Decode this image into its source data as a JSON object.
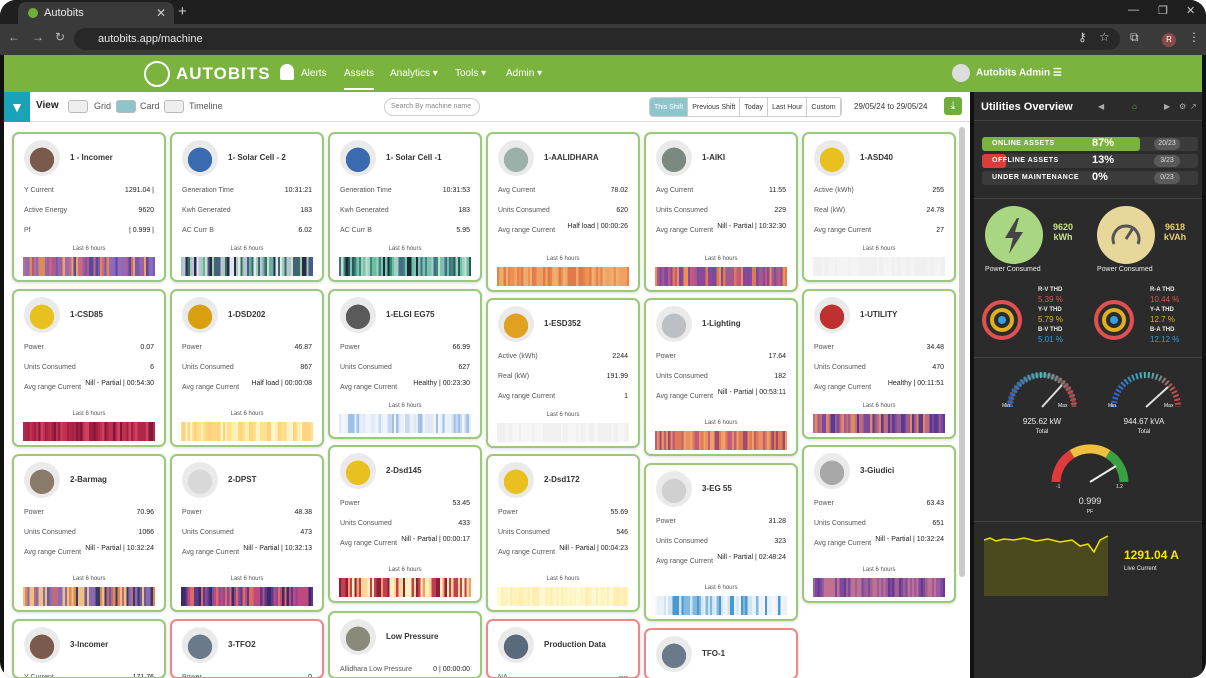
{
  "browser": {
    "tab_title": "Autobits",
    "url": "autobits.app/machine",
    "profile_initial": "R"
  },
  "nav": {
    "brand": "AUTOBITS",
    "items": [
      {
        "label": "Alerts"
      },
      {
        "label": "Assets"
      },
      {
        "label": "Analytics"
      },
      {
        "label": "Tools"
      },
      {
        "label": "Admin"
      }
    ],
    "user": "Autobits Admin"
  },
  "toolbar": {
    "view_label": "View",
    "modes": [
      "Grid",
      "Card",
      "Timeline"
    ],
    "search_placeholder": "Search By machine name",
    "shifts": [
      "This Shift",
      "Previous Shift",
      "Today",
      "Last Hour",
      "Custom"
    ],
    "date_range": "29/05/24 to 29/05/24"
  },
  "cards": [
    {
      "title": "1 - Incomer",
      "rows": [
        [
          "Y Current",
          "1291.04 |"
        ],
        [
          "Active Energy",
          "9620"
        ],
        [
          "Pf",
          "| 0.999 |"
        ]
      ],
      "hrs": "Last 6 hours"
    },
    {
      "title": "1- Solar Cell - 2",
      "rows": [
        [
          "Generation Time",
          "10:31:21"
        ],
        [
          "Kwh Generated",
          "183"
        ],
        [
          "AC Curr B",
          "6.02"
        ]
      ],
      "hrs": "Last 6 hours"
    },
    {
      "title": "1- Solar Cell -1",
      "rows": [
        [
          "Generation Time",
          "10:31:53"
        ],
        [
          "Kwh Generated",
          "183"
        ],
        [
          "AC Curr B",
          "5.95"
        ]
      ],
      "hrs": "Last 6 hours"
    },
    {
      "title": "1-AALIDHARA",
      "rows": [
        [
          "Avg Current",
          "78.02"
        ],
        [
          "Units Consumed",
          "620"
        ],
        [
          "Avg range Current",
          "Half load | 00:00:26"
        ]
      ],
      "hrs": "Last 6 hours"
    },
    {
      "title": "1-AIKI",
      "rows": [
        [
          "Avg Current",
          "11.55"
        ],
        [
          "Units Consumed",
          "229"
        ],
        [
          "Avg range Current",
          "Nill - Partial | 10:32:30"
        ]
      ],
      "hrs": "Last 6 hours"
    },
    {
      "title": "1-ASD40",
      "rows": [
        [
          "Active (kWh)",
          "255"
        ],
        [
          "Real (kW)",
          "24.78"
        ],
        [
          "Avg range Current",
          "27"
        ]
      ],
      "hrs": "Last 6 hours"
    },
    {
      "title": "1-CSD85",
      "rows": [
        [
          "Power",
          "0.07"
        ],
        [
          "Units Consumed",
          "6"
        ],
        [
          "Avg range Current",
          "Nill - Partial | 00:54:30"
        ]
      ],
      "hrs": "Last 6 hours"
    },
    {
      "title": "1-DSD202",
      "rows": [
        [
          "Power",
          "46.87"
        ],
        [
          "Units Consumed",
          "867"
        ],
        [
          "Avg range Current",
          "Half load | 00:00:08"
        ]
      ],
      "hrs": "Last 6 hours"
    },
    {
      "title": "1-ELGI EG75",
      "rows": [
        [
          "Power",
          "66.99"
        ],
        [
          "Units Consumed",
          "627"
        ],
        [
          "Avg range Current",
          "Healthy | 00:23:30"
        ]
      ],
      "hrs": "Last 6 hours"
    },
    {
      "title": "1-ESD352",
      "rows": [
        [
          "Active (kWh)",
          "2244"
        ],
        [
          "Real (kW)",
          "191.99"
        ],
        [
          "Avg range Current",
          "1"
        ]
      ],
      "hrs": "Last 6 hours"
    },
    {
      "title": "1-Lighting",
      "rows": [
        [
          "Power",
          "17.64"
        ],
        [
          "Units Consumed",
          "182"
        ],
        [
          "Avg range Current",
          "Nill - Partial | 00:53:11"
        ]
      ],
      "hrs": "Last 6 hours"
    },
    {
      "title": "1-UTILITY",
      "rows": [
        [
          "Power",
          "34.48"
        ],
        [
          "Units Consumed",
          "470"
        ],
        [
          "Avg range Current",
          "Healthy | 00:11:51"
        ]
      ],
      "hrs": "Last 6 hours"
    },
    {
      "title": "2-Barmag",
      "rows": [
        [
          "Power",
          "70.96"
        ],
        [
          "Units Consumed",
          "1066"
        ],
        [
          "Avg range Current",
          "Nill - Partial | 10:32:24"
        ]
      ],
      "hrs": "Last 6 hours"
    },
    {
      "title": "2-DPST",
      "rows": [
        [
          "Power",
          "48.38"
        ],
        [
          "Units Consumed",
          "473"
        ],
        [
          "Avg range Current",
          "Nill - Partial | 10:32:13"
        ]
      ],
      "hrs": "Last 6 hours"
    },
    {
      "title": "2-Dsd145",
      "rows": [
        [
          "Power",
          "53.45"
        ],
        [
          "Units Consumed",
          "433"
        ],
        [
          "Avg range Current",
          "Nill - Partial | 00:00:17"
        ]
      ],
      "hrs": "Last 6 hours"
    },
    {
      "title": "2-Dsd172",
      "rows": [
        [
          "Power",
          "55.69"
        ],
        [
          "Units Consumed",
          "546"
        ],
        [
          "Avg range Current",
          "Nill - Partial | 00:04:23"
        ]
      ],
      "hrs": "Last 6 hours"
    },
    {
      "title": "3-EG 55",
      "rows": [
        [
          "Power",
          "31.28"
        ],
        [
          "Units Consumed",
          "323"
        ],
        [
          "Avg range Current",
          "Nill - Partial | 02:48:24"
        ]
      ],
      "hrs": "Last 6 hours"
    },
    {
      "title": "3-Giudici",
      "rows": [
        [
          "Power",
          "63.43"
        ],
        [
          "Units Consumed",
          "651"
        ],
        [
          "Avg range Current",
          "Nill - Partial | 10:32:24"
        ]
      ],
      "hrs": "Last 6 hours"
    },
    {
      "title": "3-Incomer",
      "rows": [
        [
          "Y Current",
          "171.76"
        ]
      ],
      "hrs": ""
    },
    {
      "title": "3-TFO2",
      "rows": [
        [
          "Power",
          "0"
        ]
      ],
      "hrs": ""
    },
    {
      "title": "Low Pressure",
      "rows": [
        [
          "Allidhara Low Pressure",
          "0 | 00:00:00"
        ]
      ],
      "hrs": ""
    },
    {
      "title": "Production Data",
      "rows": [
        [
          "NA",
          "----"
        ]
      ],
      "hrs": ""
    },
    {
      "title": "TFO-1",
      "rows": [],
      "hrs": ""
    }
  ],
  "side": {
    "title": "Utilities Overview",
    "stats": [
      {
        "label": "ONLINE ASSETS",
        "pct": "87%",
        "count": "20/23",
        "fill": 0.87,
        "color": "#7ab33e"
      },
      {
        "label": "OFFLINE ASSETS",
        "pct": "13%",
        "count": "3/23",
        "fill": 0.13,
        "color": "#e03b3b"
      },
      {
        "label": "UNDER MAINTENANCE",
        "pct": "0%",
        "count": "0/23",
        "fill": 0,
        "color": "#888"
      }
    ],
    "power1": {
      "value": "9620",
      "unit": "kWh",
      "label": "Power Consumed"
    },
    "power2": {
      "value": "9618",
      "unit": "kVAh",
      "label": "Power Consumed"
    },
    "thd_left": [
      {
        "name": "R-V THD",
        "val": "5.39 %",
        "color": "#e05050"
      },
      {
        "name": "Y-V THD",
        "val": "5.79 %",
        "color": "#e0b020"
      },
      {
        "name": "B-V THD",
        "val": "5.01 %",
        "color": "#30a0e0"
      }
    ],
    "thd_right": [
      {
        "name": "R-A THD",
        "val": "10.44 %",
        "color": "#e05050"
      },
      {
        "name": "Y-A THD",
        "val": "12.7 %",
        "color": "#e0b020"
      },
      {
        "name": "B-A THD",
        "val": "12.12 %",
        "color": "#30a0e0"
      }
    ],
    "gauge1": {
      "min": "Min",
      "max": "Max",
      "value": "925.62 kW",
      "label": "Total"
    },
    "gauge2": {
      "min": "Min",
      "max": "Max",
      "value": "944.67 kVA",
      "label": "Total"
    },
    "pf": {
      "lo": "-1",
      "hi": "1.2",
      "value": "0.999",
      "label": "PF"
    },
    "live": {
      "value": "1291.04 A",
      "label": "Live Current"
    }
  }
}
